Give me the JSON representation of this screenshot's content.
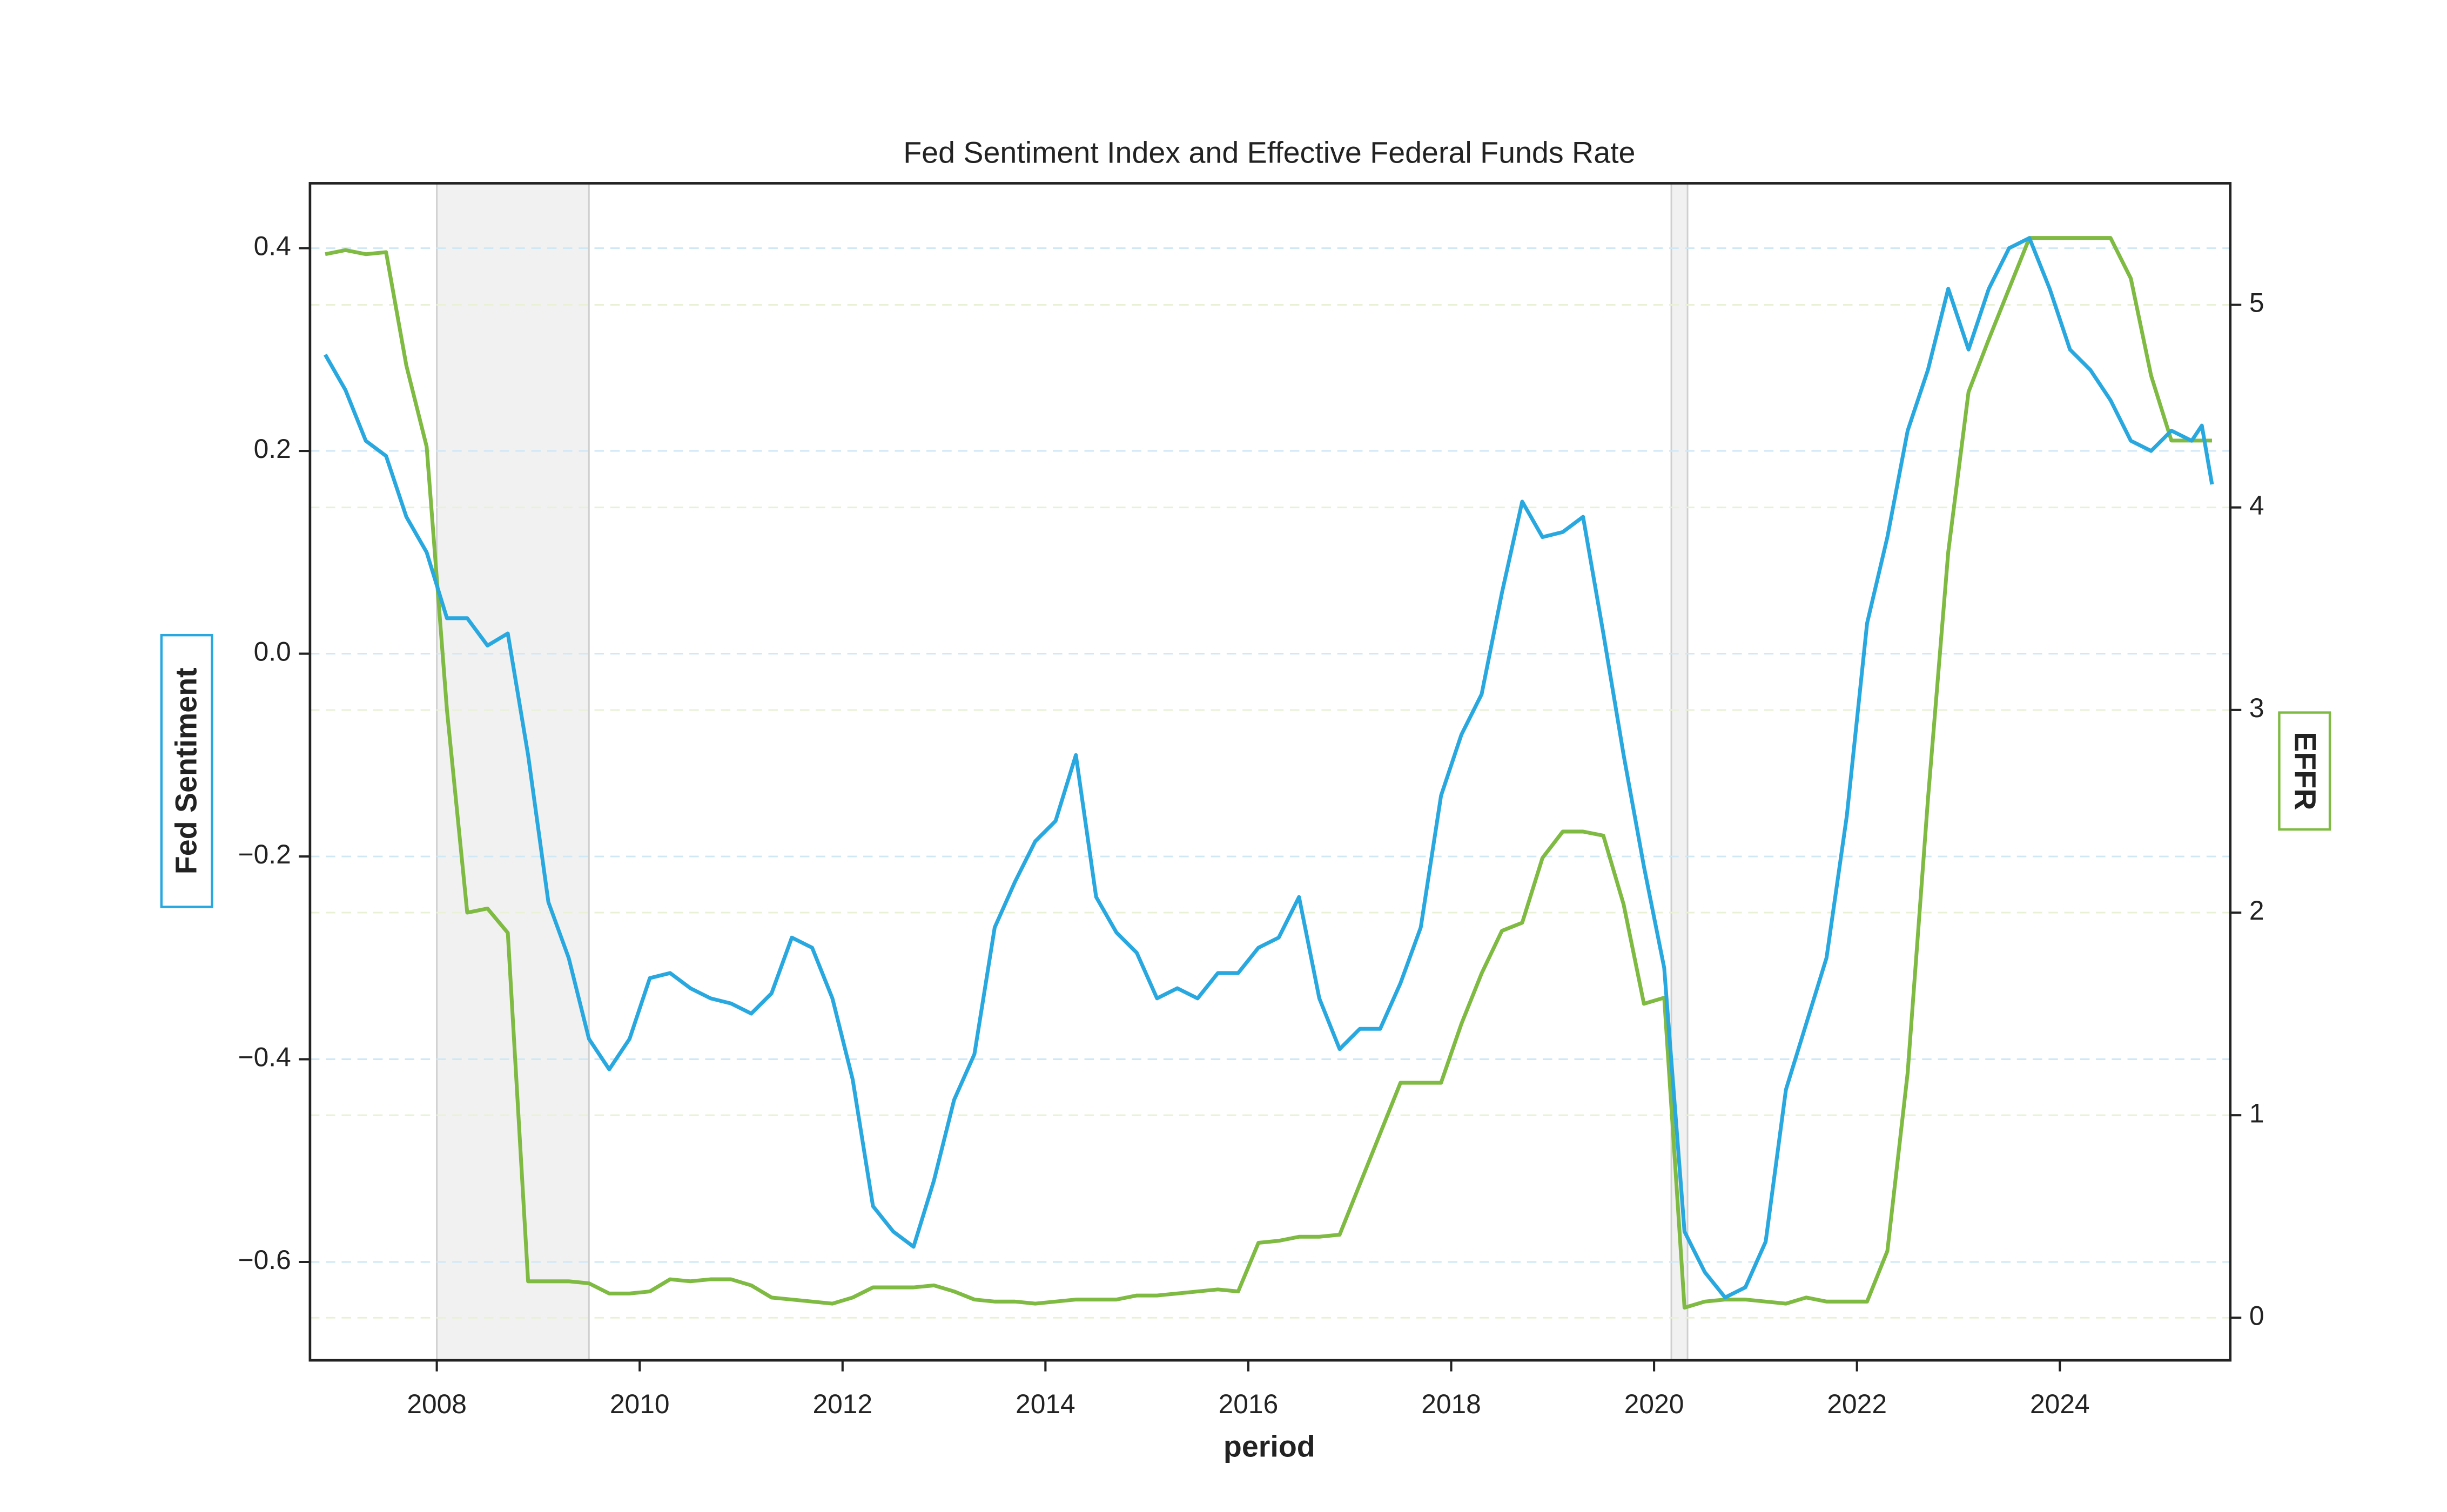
{
  "chart_data": {
    "type": "line",
    "title": "Fed Sentiment Index and Effective Federal Funds Rate",
    "xlabel": "period",
    "ylabel": "Fed Sentiment",
    "y2label": "EFFR",
    "x": [
      2006.9,
      2007.1,
      2007.3,
      2007.5,
      2007.7,
      2007.9,
      2008.1,
      2008.3,
      2008.5,
      2008.7,
      2008.9,
      2009.1,
      2009.3,
      2009.5,
      2009.7,
      2009.9,
      2010.1,
      2010.3,
      2010.5,
      2010.7,
      2010.9,
      2011.1,
      2011.3,
      2011.5,
      2011.7,
      2011.9,
      2012.1,
      2012.3,
      2012.5,
      2012.7,
      2012.9,
      2013.1,
      2013.3,
      2013.5,
      2013.7,
      2013.9,
      2014.1,
      2014.3,
      2014.5,
      2014.7,
      2014.9,
      2015.1,
      2015.3,
      2015.5,
      2015.7,
      2015.9,
      2016.1,
      2016.3,
      2016.5,
      2016.7,
      2016.9,
      2017.1,
      2017.3,
      2017.5,
      2017.7,
      2017.9,
      2018.1,
      2018.3,
      2018.5,
      2018.7,
      2018.9,
      2019.1,
      2019.3,
      2019.5,
      2019.7,
      2019.9,
      2020.1,
      2020.3,
      2020.5,
      2020.7,
      2020.9,
      2021.1,
      2021.3,
      2021.5,
      2021.7,
      2021.9,
      2022.1,
      2022.3,
      2022.5,
      2022.7,
      2022.9,
      2023.1,
      2023.3,
      2023.5,
      2023.7,
      2023.9,
      2024.1,
      2024.3,
      2024.5,
      2024.7,
      2024.9,
      2025.1,
      2025.3,
      2025.4,
      2025.5
    ],
    "series": [
      {
        "name": "Fed Sentiment",
        "color": "#29a8e0",
        "values": [
          0.295,
          0.26,
          0.21,
          0.195,
          0.135,
          0.1,
          0.035,
          0.035,
          0.008,
          0.02,
          -0.1,
          -0.245,
          -0.3,
          -0.38,
          -0.41,
          -0.38,
          -0.32,
          -0.315,
          -0.33,
          -0.34,
          -0.345,
          -0.355,
          -0.335,
          -0.28,
          -0.29,
          -0.34,
          -0.42,
          -0.545,
          -0.57,
          -0.585,
          -0.52,
          -0.44,
          -0.395,
          -0.27,
          -0.225,
          -0.185,
          -0.165,
          -0.1,
          -0.24,
          -0.275,
          -0.295,
          -0.34,
          -0.33,
          -0.34,
          -0.315,
          -0.315,
          -0.29,
          -0.28,
          -0.24,
          -0.34,
          -0.39,
          -0.37,
          -0.37,
          -0.325,
          -0.27,
          -0.14,
          -0.08,
          -0.04,
          0.06,
          0.15,
          0.115,
          0.12,
          0.135,
          0.02,
          -0.1,
          -0.21,
          -0.31,
          -0.57,
          -0.61,
          -0.635,
          -0.625,
          -0.58,
          -0.43,
          -0.365,
          -0.3,
          -0.16,
          0.03,
          0.115,
          0.22,
          0.28,
          0.36,
          0.3,
          0.36,
          0.4,
          0.41,
          0.36,
          0.3,
          0.28,
          0.25,
          0.21,
          0.2,
          0.22,
          0.21,
          0.225,
          0.167
        ]
      },
      {
        "name": "EFFR",
        "color": "#7fba42",
        "axis": "y2",
        "values": [
          5.25,
          5.27,
          5.25,
          5.26,
          4.7,
          4.3,
          3.0,
          2.0,
          2.02,
          1.9,
          0.18,
          0.18,
          0.18,
          0.17,
          0.12,
          0.12,
          0.13,
          0.19,
          0.18,
          0.19,
          0.19,
          0.16,
          0.1,
          0.09,
          0.08,
          0.07,
          0.1,
          0.15,
          0.15,
          0.15,
          0.16,
          0.13,
          0.09,
          0.08,
          0.08,
          0.07,
          0.08,
          0.09,
          0.09,
          0.09,
          0.11,
          0.11,
          0.12,
          0.13,
          0.14,
          0.13,
          0.37,
          0.38,
          0.4,
          0.4,
          0.41,
          0.66,
          0.91,
          1.16,
          1.16,
          1.16,
          1.45,
          1.7,
          1.91,
          1.95,
          2.27,
          2.4,
          2.4,
          2.38,
          2.04,
          1.55,
          1.58,
          0.05,
          0.08,
          0.09,
          0.09,
          0.08,
          0.07,
          0.1,
          0.08,
          0.08,
          0.08,
          0.33,
          1.21,
          2.56,
          3.78,
          4.57,
          4.83,
          5.08,
          5.33,
          5.33,
          5.33,
          5.33,
          5.33,
          5.13,
          4.65,
          4.33,
          4.33,
          4.33,
          4.33
        ]
      }
    ],
    "shaded_spans": [
      [
        2008.0,
        2009.5
      ],
      [
        2020.17,
        2020.33
      ]
    ],
    "xlim": [
      2006.75,
      2025.68
    ],
    "xticks": [
      2008,
      2010,
      2012,
      2014,
      2016,
      2018,
      2020,
      2022,
      2024
    ],
    "ylim": [
      -0.697,
      0.464
    ],
    "yticks": [
      {
        "value": -0.6,
        "label": "−0.6"
      },
      {
        "value": -0.4,
        "label": "−0.4"
      },
      {
        "value": -0.2,
        "label": "−0.2"
      },
      {
        "value": 0,
        "label": "0.0"
      },
      0.2,
      0.4
    ],
    "y2lim": [
      -0.21,
      5.6
    ],
    "y2ticks": [
      0,
      1,
      2,
      3,
      4,
      5
    ],
    "grid": true
  }
}
